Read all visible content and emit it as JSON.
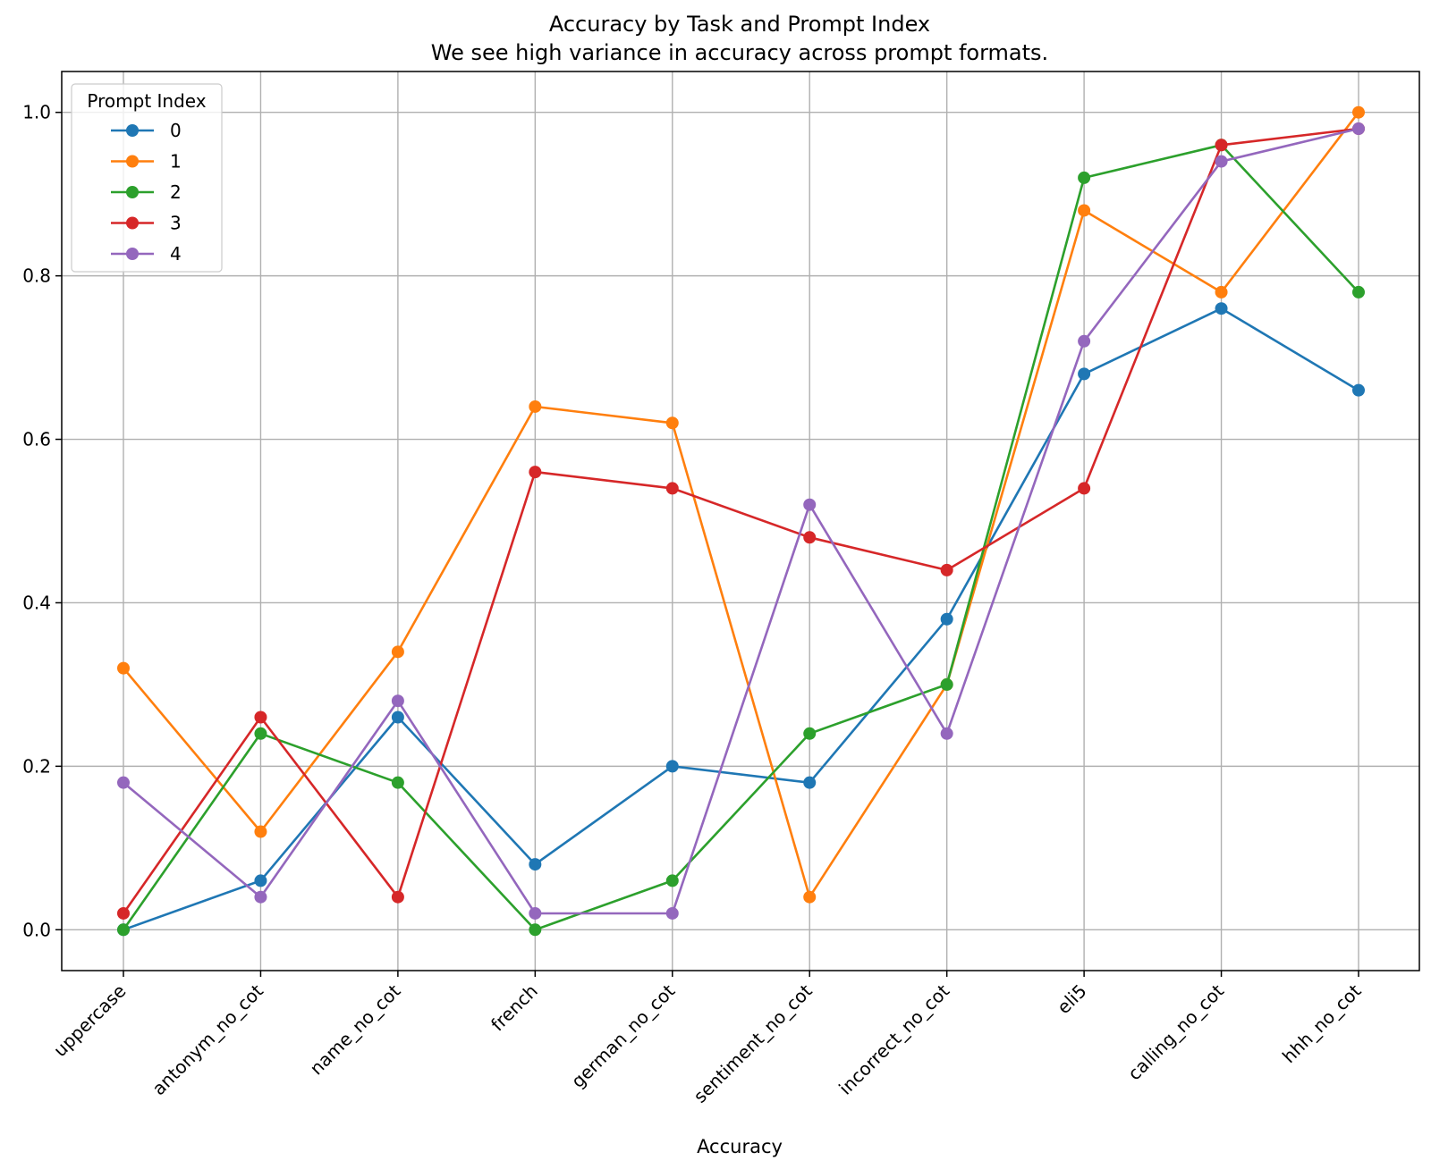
{
  "chart_data": {
    "type": "line",
    "title": "Accuracy by Task and Prompt Index",
    "subtitle": "We see high variance in accuracy across prompt formats.",
    "xlabel": "Accuracy",
    "ylabel": "",
    "categories": [
      "uppercase",
      "antonym_no_cot",
      "name_no_cot",
      "french",
      "german_no_cot",
      "sentiment_no_cot",
      "incorrect_no_cot",
      "eli5",
      "calling_no_cot",
      "hhh_no_cot"
    ],
    "yticks": [
      "0.0",
      "0.2",
      "0.4",
      "0.6",
      "0.8",
      "1.0"
    ],
    "ylim": [
      -0.05,
      1.05
    ],
    "grid": true,
    "legend_title": "Prompt Index",
    "legend_position": "top-left",
    "markers": "circle",
    "series": [
      {
        "name": "0",
        "color": "#1f77b4",
        "values": [
          0.0,
          0.06,
          0.26,
          0.08,
          0.2,
          0.18,
          0.38,
          0.68,
          0.76,
          0.66
        ]
      },
      {
        "name": "1",
        "color": "#ff7f0e",
        "values": [
          0.32,
          0.12,
          0.34,
          0.64,
          0.62,
          0.04,
          0.3,
          0.88,
          0.78,
          1.0
        ]
      },
      {
        "name": "2",
        "color": "#2ca02c",
        "values": [
          0.0,
          0.24,
          0.18,
          0.0,
          0.06,
          0.24,
          0.3,
          0.92,
          0.96,
          0.78
        ]
      },
      {
        "name": "3",
        "color": "#d62728",
        "values": [
          0.02,
          0.26,
          0.04,
          0.56,
          0.54,
          0.48,
          0.44,
          0.54,
          0.96,
          0.98
        ]
      },
      {
        "name": "4",
        "color": "#9467bd",
        "values": [
          0.18,
          0.04,
          0.28,
          0.02,
          0.02,
          0.52,
          0.24,
          0.72,
          0.94,
          0.98
        ]
      }
    ]
  }
}
